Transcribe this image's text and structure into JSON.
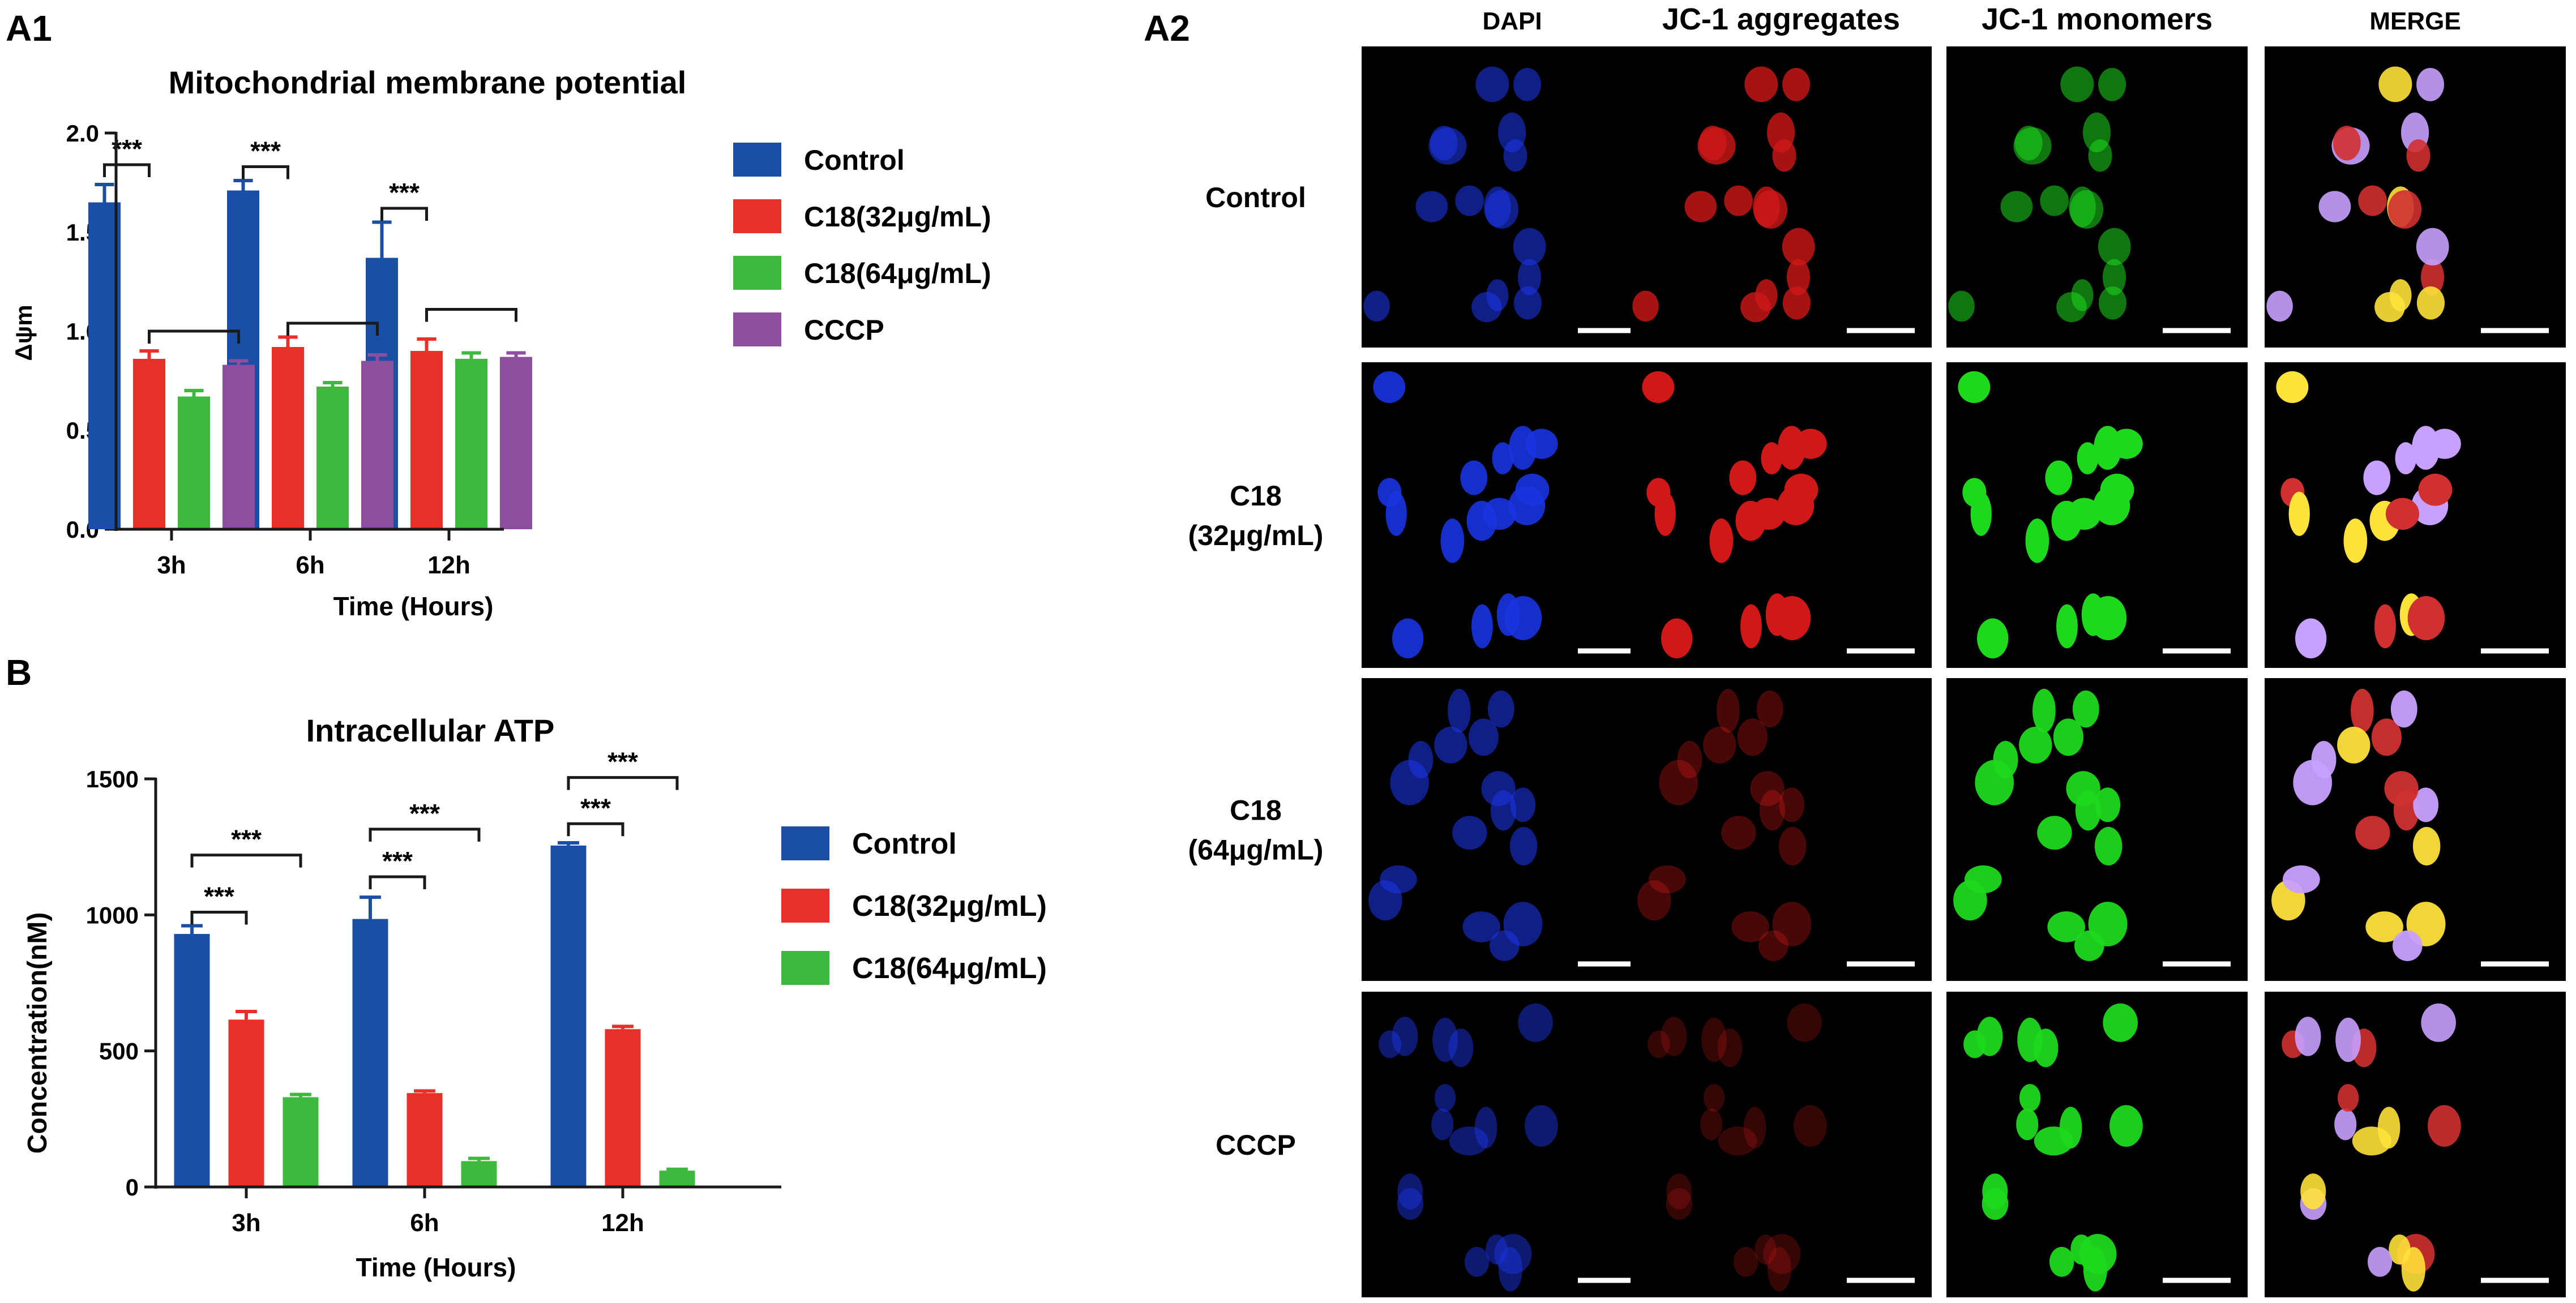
{
  "panel_labels": {
    "a1": "A1",
    "b": "B",
    "a2": "A2"
  },
  "colors": {
    "control": "#1b4fa6",
    "c18_32": "#e8302a",
    "c18_64": "#3db93e",
    "cccp": "#8e4e9f",
    "axis": "#1a1a1a"
  },
  "chart_data": [
    {
      "id": "a1",
      "type": "bar",
      "title": "Mitochondrial membrane potential",
      "xlabel": "Time (Hours)",
      "ylabel": "Δψm",
      "categories": [
        "3h",
        "6h",
        "12h"
      ],
      "ylim": [
        0,
        2.0
      ],
      "yticks": [
        "0.0",
        "0.5",
        "1.0",
        "1.5",
        "2.0"
      ],
      "legend_position": "right",
      "series": [
        {
          "name": "Control",
          "color": "#1b4fa6",
          "values": [
            1.65,
            1.71,
            1.37
          ],
          "errors": [
            0.09,
            0.05,
            0.18
          ]
        },
        {
          "name": "C18(32μg/mL)",
          "color": "#e8302a",
          "values": [
            0.86,
            0.92,
            0.9
          ],
          "errors": [
            0.04,
            0.05,
            0.06
          ]
        },
        {
          "name": "C18(64μg/mL)",
          "color": "#3db93e",
          "values": [
            0.67,
            0.72,
            0.86
          ],
          "errors": [
            0.03,
            0.02,
            0.03
          ]
        },
        {
          "name": "CCCP",
          "color": "#8e4e9f",
          "values": [
            0.83,
            0.85,
            0.87
          ],
          "errors": [
            0.02,
            0.03,
            0.02
          ]
        }
      ],
      "annotations": [
        {
          "label": "***",
          "group": 0,
          "from": 0,
          "to": 1,
          "y": 1.84
        },
        {
          "label": "",
          "group": 0,
          "from": 1,
          "to": 3,
          "y": 1.0
        },
        {
          "label": "***",
          "group": 1,
          "from": 0,
          "to": 1,
          "y": 1.83
        },
        {
          "label": "",
          "group": 1,
          "from": 1,
          "to": 3,
          "y": 1.04
        },
        {
          "label": "***",
          "group": 2,
          "from": 0,
          "to": 1,
          "y": 1.62
        },
        {
          "label": "",
          "group": 2,
          "from": 1,
          "to": 3,
          "y": 1.11
        }
      ]
    },
    {
      "id": "b",
      "type": "bar",
      "title": "Intracellular ATP",
      "xlabel": "Time (Hours)",
      "ylabel": "Concentration(nM)",
      "categories": [
        "3h",
        "6h",
        "12h"
      ],
      "ylim": [
        0,
        1500
      ],
      "yticks": [
        "0",
        "500",
        "1000",
        "1500"
      ],
      "legend_position": "right",
      "series": [
        {
          "name": "Control",
          "color": "#1b4fa6",
          "values": [
            930,
            985,
            1255
          ],
          "errors": [
            30,
            80,
            10
          ]
        },
        {
          "name": "C18(32μg/mL)",
          "color": "#e8302a",
          "values": [
            615,
            345,
            580
          ],
          "errors": [
            30,
            8,
            10
          ]
        },
        {
          "name": "C18(64μg/mL)",
          "color": "#3db93e",
          "values": [
            330,
            95,
            60
          ],
          "errors": [
            10,
            10,
            5
          ]
        }
      ],
      "annotations": [
        {
          "label": "***",
          "group": 0,
          "from": 0,
          "to": 1,
          "y": 1010
        },
        {
          "label": "***",
          "group": 0,
          "from": 0,
          "to": 2,
          "y": 1220
        },
        {
          "label": "***",
          "group": 1,
          "from": 0,
          "to": 1,
          "y": 1140
        },
        {
          "label": "***",
          "group": 1,
          "from": 0,
          "to": 2,
          "y": 1315
        },
        {
          "label": "***",
          "group": 2,
          "from": 0,
          "to": 1,
          "y": 1335
        },
        {
          "label": "***",
          "group": 2,
          "from": 0,
          "to": 2,
          "y": 1505
        }
      ]
    }
  ],
  "micrographs": {
    "columns": [
      "DAPI",
      "JC-1 aggregates",
      "JC-1 monomers",
      "MERGE"
    ],
    "rows": [
      {
        "label_lines": [
          "Control"
        ]
      },
      {
        "label_lines": [
          "C18",
          "(32μg/mL)"
        ]
      },
      {
        "label_lines": [
          "C18",
          "(64μg/mL)"
        ]
      },
      {
        "label_lines": [
          "CCCP"
        ]
      }
    ],
    "channel_colors": {
      "DAPI": [
        "#1a34e0"
      ],
      "JC-1 aggregates": [
        "#d01818"
      ],
      "JC-1 monomers": [
        "#1ed81e"
      ],
      "MERGE": [
        "#c8a0ff",
        "#ffe23a",
        "#d03030"
      ]
    },
    "channel_opacity": [
      [
        0.6,
        0.8,
        0.55,
        0.9
      ],
      [
        0.9,
        1.0,
        1.0,
        1.0
      ],
      [
        0.6,
        0.35,
        0.95,
        0.95
      ],
      [
        0.5,
        0.25,
        0.95,
        0.9
      ]
    ],
    "scale_bar_color": "#ffffff"
  }
}
